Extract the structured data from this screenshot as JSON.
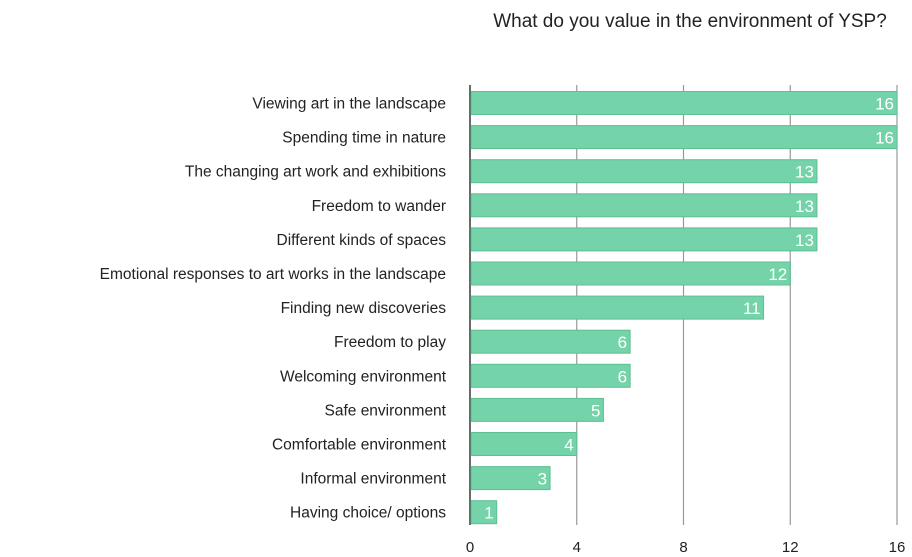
{
  "chart_data": {
    "type": "bar",
    "orientation": "horizontal",
    "title": "What do you value in the environment of YSP?",
    "categories": [
      "Viewing art in the landscape",
      "Spending time in nature",
      "The changing art work and exhibitions",
      "Freedom to wander",
      "Different kinds of spaces",
      "Emotional responses to art works in the landscape",
      "Finding new discoveries",
      "Freedom to play",
      "Welcoming environment",
      "Safe environment",
      "Comfortable environment",
      "Informal environment",
      "Having choice/ options"
    ],
    "values": [
      16,
      16,
      13,
      13,
      13,
      12,
      11,
      6,
      6,
      5,
      4,
      3,
      1
    ],
    "xlim": [
      0,
      16
    ],
    "xticks": [
      0,
      4,
      8,
      12,
      16
    ],
    "grid": true,
    "bar_color": "#74d3a8"
  }
}
